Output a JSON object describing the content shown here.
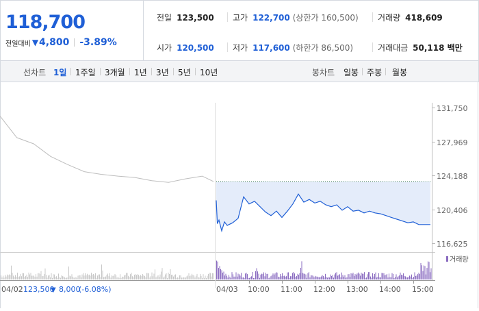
{
  "quote": {
    "price": "118,700",
    "change_label": "전일대비",
    "change_arrow": "▼",
    "change_value": "4,800",
    "change_rate": "-3.89%",
    "prev_close_label": "전일",
    "prev_close": "123,500",
    "high_label": "고가",
    "high": "122,700",
    "upper_limit": "(상한가 160,500)",
    "volume_label": "거래량",
    "volume": "418,609",
    "open_label": "시가",
    "open": "120,500",
    "low_label": "저가",
    "low": "117,600",
    "lower_limit": "(하한가 86,500)",
    "amount_label": "거래대금",
    "amount": "50,118 백만"
  },
  "toolbar": {
    "line_chart_label": "선차트",
    "periods": [
      "1일",
      "1주일",
      "3개월",
      "1년",
      "3년",
      "5년",
      "10년"
    ],
    "active_period": "1일",
    "candle_chart_label": "봉차트",
    "candle_periods": [
      "일봉",
      "주봉",
      "월봉"
    ]
  },
  "colors": {
    "accent": "#1f5fd6",
    "fill": "#e4ecfa",
    "prev_line": "#bdbdbd",
    "volume_today": "#8a6bc0"
  },
  "chart_data": {
    "type": "line",
    "ylim": [
      116625,
      131750
    ],
    "y_ticks": [
      "131,750",
      "127,969",
      "124,188",
      "120,406",
      "116,625"
    ],
    "reference_line": 123500,
    "x_ticks": [
      "10:00",
      "11:00",
      "12:00",
      "13:00",
      "14:00",
      "15:00"
    ],
    "prev_day_label": "04/02",
    "prev_day_summary": {
      "close": "123,500",
      "arrow": "▼",
      "change": "8,000",
      "rate": "(-6.08%)"
    },
    "today_label": "04/03",
    "volume_label": "거래량",
    "series": [
      {
        "name": "04/02",
        "x": [
          "09:00",
          "09:30",
          "10:00",
          "10:30",
          "11:00",
          "11:30",
          "12:00",
          "12:30",
          "13:00",
          "13:30",
          "14:00",
          "14:30",
          "15:00",
          "15:20"
        ],
        "values": [
          130800,
          128400,
          127700,
          126300,
          125400,
          124600,
          124300,
          124100,
          123950,
          123600,
          123400,
          123800,
          124100,
          123500
        ]
      },
      {
        "name": "04/03",
        "x": [
          "09:00",
          "09:02",
          "09:05",
          "09:10",
          "09:15",
          "09:20",
          "09:30",
          "09:40",
          "09:45",
          "09:50",
          "10:00",
          "10:10",
          "10:20",
          "10:30",
          "10:40",
          "10:50",
          "11:00",
          "11:10",
          "11:20",
          "11:30",
          "11:40",
          "11:50",
          "12:00",
          "12:10",
          "12:20",
          "12:30",
          "12:40",
          "12:50",
          "13:00",
          "13:10",
          "13:20",
          "13:30",
          "13:40",
          "13:50",
          "14:00",
          "14:10",
          "14:20",
          "14:30",
          "14:40",
          "14:50",
          "15:00",
          "15:10",
          "15:20"
        ],
        "values": [
          121400,
          118800,
          119200,
          118000,
          119000,
          118600,
          118900,
          119400,
          120600,
          121800,
          121000,
          121300,
          120700,
          120100,
          119700,
          120200,
          119500,
          120200,
          121000,
          122100,
          121200,
          121500,
          121100,
          121300,
          120900,
          120700,
          120900,
          120300,
          120700,
          120200,
          120300,
          120000,
          120200,
          120000,
          119900,
          119700,
          119500,
          119300,
          119100,
          118900,
          119000,
          118700,
          118700
        ]
      }
    ]
  }
}
